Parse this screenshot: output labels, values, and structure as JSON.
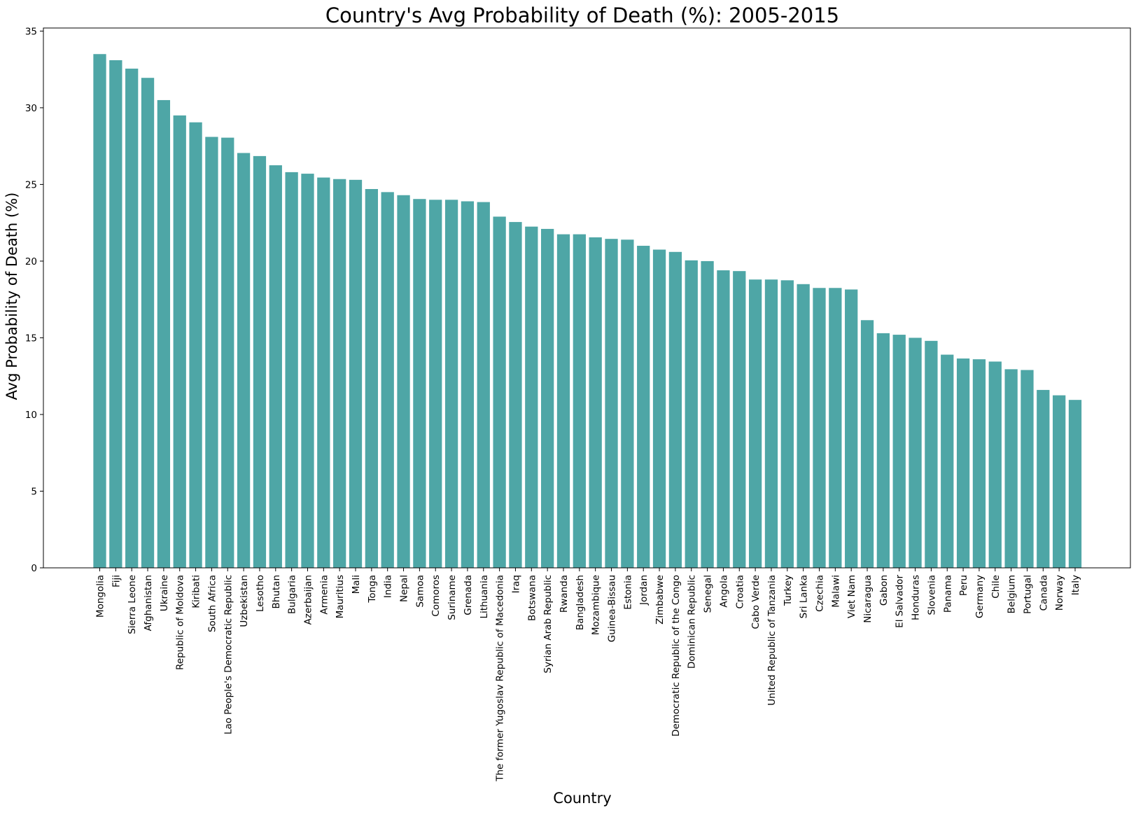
{
  "chart_data": {
    "type": "bar",
    "title": "Country's Avg Probability of Death (%): 2005-2015",
    "xlabel": "Country",
    "ylabel": "Avg Probability of Death (%)",
    "ylim": [
      0,
      35.2
    ],
    "yticks": [
      0,
      5,
      10,
      15,
      20,
      25,
      30,
      35
    ],
    "grid": false,
    "legend": "none",
    "bar_color": "#4ea6a6",
    "categories": [
      "Mongolia",
      "Fiji",
      "Sierra Leone",
      "Afghanistan",
      "Ukraine",
      "Republic of Moldova",
      "Kiribati",
      "South Africa",
      "Lao People's Democratic Republic",
      "Uzbekistan",
      "Lesotho",
      "Bhutan",
      "Bulgaria",
      "Azerbaijan",
      "Armenia",
      "Mauritius",
      "Mali",
      "Tonga",
      "India",
      "Nepal",
      "Samoa",
      "Comoros",
      "Suriname",
      "Grenada",
      "Lithuania",
      "The former Yugoslav Republic of Macedonia",
      "Iraq",
      "Botswana",
      "Syrian Arab Republic",
      "Rwanda",
      "Bangladesh",
      "Mozambique",
      "Guinea-Bissau",
      "Estonia",
      "Jordan",
      "Zimbabwe",
      "Democratic Republic of the Congo",
      "Dominican Republic",
      "Senegal",
      "Angola",
      "Croatia",
      "Cabo Verde",
      "United Republic of Tanzania",
      "Turkey",
      "Sri Lanka",
      "Czechia",
      "Malawi",
      "Viet Nam",
      "Nicaragua",
      "Gabon",
      "El Salvador",
      "Honduras",
      "Slovenia",
      "Panama",
      "Peru",
      "Germany",
      "Chile",
      "Belgium",
      "Portugal",
      "Canada",
      "Norway",
      "Italy"
    ],
    "values": [
      33.5,
      33.1,
      32.55,
      31.95,
      30.5,
      29.5,
      29.05,
      28.1,
      28.05,
      27.05,
      26.85,
      26.25,
      25.8,
      25.7,
      25.45,
      25.35,
      25.3,
      24.7,
      24.5,
      24.3,
      24.05,
      24.0,
      24.0,
      23.9,
      23.85,
      22.9,
      22.55,
      22.25,
      22.1,
      21.75,
      21.75,
      21.55,
      21.45,
      21.4,
      21.0,
      20.75,
      20.6,
      20.05,
      20.0,
      19.4,
      19.35,
      18.8,
      18.8,
      18.75,
      18.5,
      18.25,
      18.25,
      18.15,
      16.15,
      15.3,
      15.2,
      15.0,
      14.8,
      13.9,
      13.65,
      13.6,
      13.45,
      12.95,
      12.9,
      11.6,
      11.25,
      10.95
    ]
  }
}
